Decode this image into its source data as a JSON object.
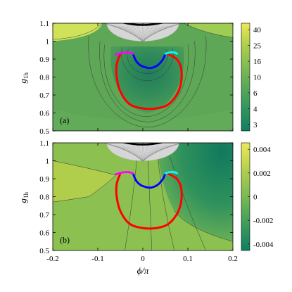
{
  "chart_data": [
    {
      "type": "heatmap",
      "panel_label": "(a)",
      "xlabel": "ϕ/π",
      "ylabel_base": "g",
      "ylabel_sub": "1h",
      "xlim": [
        -0.2,
        0.2
      ],
      "ylim": [
        0.5,
        1.1
      ],
      "x_ticks": [],
      "y_ticks": [
        "0.5",
        "0.6",
        "0.7",
        "0.8",
        "0.9",
        "1",
        "1.1"
      ],
      "colorbar": {
        "ticks": [
          "3",
          "4",
          "6",
          "10",
          "16",
          "25",
          "40"
        ],
        "colors": [
          "#0f8060",
          "#2a915e",
          "#4aa25a",
          "#6bb256",
          "#90c250",
          "#b8d44a",
          "#ede85a"
        ]
      },
      "colors": {
        "background": "#5ea757",
        "lower_field": "#62ab58",
        "upper_left": "#cfe25a",
        "upper_mid": "#9fcc52",
        "basin_outer": "#4a9c58",
        "basin_inner": "#2f8a5a",
        "basin_core": "#1f7d5a",
        "excluded": "#d6d6d6",
        "contour": "#3a3a3a"
      },
      "curves": {
        "red": {
          "color": "#ff0000",
          "x": [
            -0.05,
            -0.058,
            -0.058,
            -0.05,
            -0.03,
            0.0,
            0.03,
            0.055,
            0.075,
            0.085,
            0.085,
            0.075,
            0.055
          ],
          "y": [
            0.93,
            0.87,
            0.8,
            0.72,
            0.65,
            0.625,
            0.625,
            0.645,
            0.7,
            0.77,
            0.85,
            0.9,
            0.93
          ]
        },
        "blue": {
          "color": "#0000ff",
          "x": [
            -0.022,
            -0.015,
            -0.005,
            0.005,
            0.015,
            0.025,
            0.035,
            0.045,
            0.05
          ],
          "y": [
            0.93,
            0.89,
            0.865,
            0.855,
            0.85,
            0.855,
            0.87,
            0.9,
            0.93
          ]
        },
        "magenta": {
          "color": "#ff00ff",
          "x": [
            -0.06,
            -0.045,
            -0.032,
            -0.022
          ],
          "y": [
            0.925,
            0.935,
            0.937,
            0.93
          ]
        },
        "cyan": {
          "color": "#00ffff",
          "x": [
            0.05,
            0.058,
            0.068,
            0.076
          ],
          "y": [
            0.93,
            0.936,
            0.938,
            0.93
          ]
        }
      }
    },
    {
      "type": "heatmap",
      "panel_label": "(b)",
      "xlabel": "ϕ/π",
      "ylabel_base": "g",
      "ylabel_sub": "1h",
      "xlim": [
        -0.2,
        0.2
      ],
      "ylim": [
        0.5,
        1.1
      ],
      "x_ticks": [
        "-0.2",
        "-0.1",
        "0",
        "0.1",
        "0.2"
      ],
      "y_ticks": [
        "0.5",
        "0.6",
        "0.7",
        "0.8",
        "0.9",
        "1",
        "1.1"
      ],
      "colorbar": {
        "ticks": [
          "-0.004",
          "-0.002",
          "0",
          "0.002",
          "0.004"
        ],
        "colors": [
          "#0f8060",
          "#3f9c5c",
          "#7ab954",
          "#b3d04c",
          "#ede85a"
        ]
      },
      "colors": {
        "background": "#8cc050",
        "left_band": "#b0cd4c",
        "right_low": "#4aa05a",
        "right_core": "#1f8560",
        "excluded": "#d6d6d6",
        "contour": "#3a3a3a"
      },
      "curves": {
        "red": {
          "color": "#ff0000",
          "x": [
            -0.05,
            -0.058,
            -0.058,
            -0.05,
            -0.03,
            0.0,
            0.03,
            0.055,
            0.075,
            0.085,
            0.085,
            0.075,
            0.055
          ],
          "y": [
            0.93,
            0.87,
            0.8,
            0.72,
            0.65,
            0.625,
            0.625,
            0.645,
            0.7,
            0.77,
            0.85,
            0.9,
            0.93
          ]
        },
        "blue": {
          "color": "#0000ff",
          "x": [
            -0.022,
            -0.015,
            -0.005,
            0.005,
            0.015,
            0.025,
            0.035,
            0.045,
            0.05
          ],
          "y": [
            0.93,
            0.89,
            0.865,
            0.855,
            0.85,
            0.855,
            0.87,
            0.9,
            0.93
          ]
        },
        "magenta": {
          "color": "#ff00ff",
          "x": [
            -0.06,
            -0.045,
            -0.032,
            -0.022
          ],
          "y": [
            0.925,
            0.935,
            0.937,
            0.93
          ]
        },
        "cyan": {
          "color": "#00ffff",
          "x": [
            0.05,
            0.058,
            0.068,
            0.076
          ],
          "y": [
            0.93,
            0.936,
            0.938,
            0.93
          ]
        }
      }
    }
  ]
}
